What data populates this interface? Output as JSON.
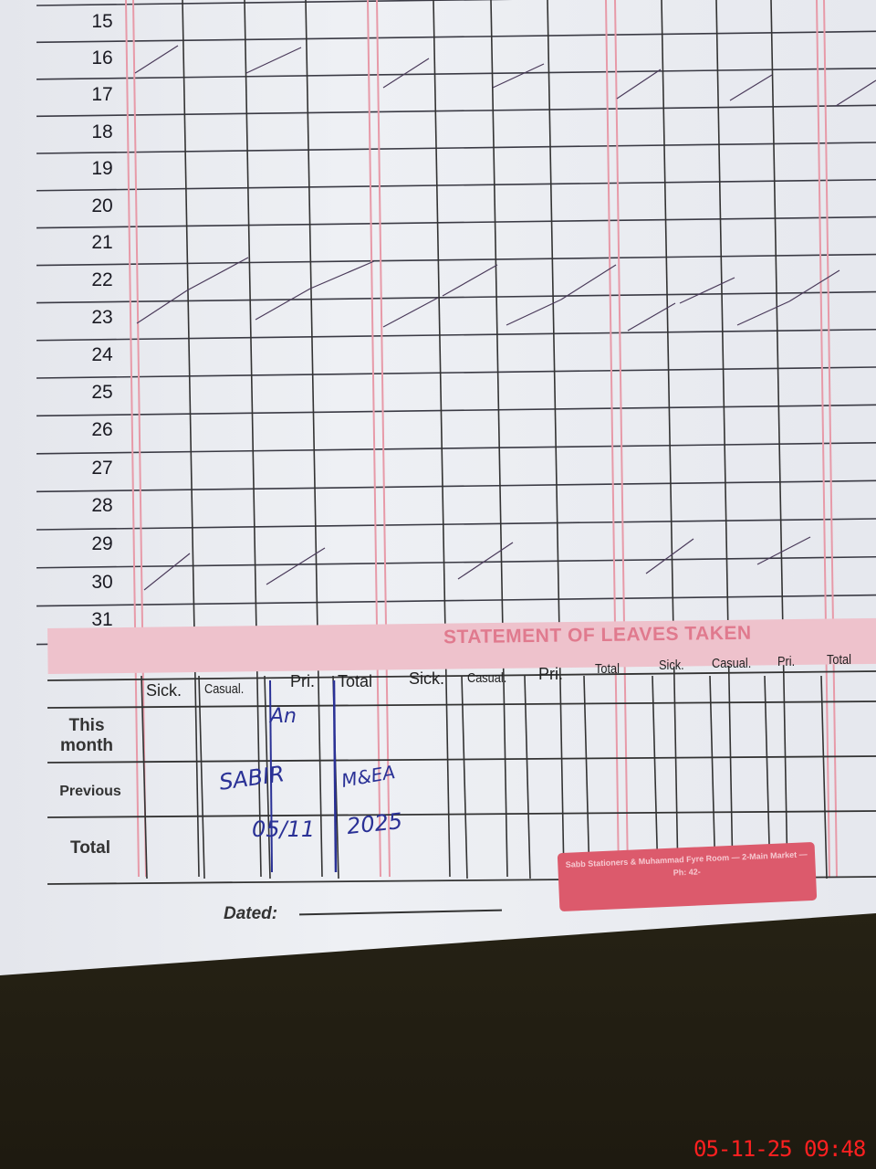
{
  "register": {
    "day_numbers": [
      "15",
      "16",
      "17",
      "18",
      "19",
      "20",
      "21",
      "22",
      "23",
      "24",
      "25",
      "26",
      "27",
      "28",
      "29",
      "30",
      "31"
    ]
  },
  "statement": {
    "title": "STATEMENT OF LEAVES TAKEN",
    "column_headers": [
      "Sick.",
      "Casual.",
      "Pri.",
      "Total",
      "Sick.",
      "Casual.",
      "Pri.",
      "Total",
      "Sick.",
      "Casual.",
      "Pri.",
      "Total"
    ],
    "row_labels": [
      "This month",
      "Previous",
      "Total"
    ],
    "handwriting": {
      "initials": "An",
      "name": "SABIR",
      "designation": "M&EA",
      "date_day_month": "05/11",
      "date_year": "2025"
    }
  },
  "footer": {
    "dated_label": "Dated:",
    "stamp_text": "Sabb Stationers & Muhammad Fyre Room — 2-Main Market — Ph: 42-"
  },
  "photo_timestamp": "05-11-25  09:48",
  "colors": {
    "pink_rule": "#e79aa8",
    "band": "#eec2cc",
    "ink": "#2a3196",
    "timestamp": "#ff2020"
  }
}
